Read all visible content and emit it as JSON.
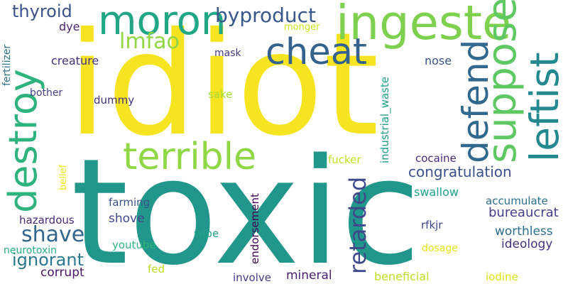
{
  "words": [
    {
      "text": "idiot",
      "color": "#f5e41f"
    },
    {
      "text": "toxic",
      "color": "#21968b"
    },
    {
      "text": "ingeste",
      "color": "#7ed14f"
    },
    {
      "text": "moron",
      "color": "#22a784"
    },
    {
      "text": "destroy",
      "color": "#2eb37c"
    },
    {
      "text": "terrible",
      "color": "#8fd744"
    },
    {
      "text": "cheat",
      "color": "#33628d"
    },
    {
      "text": "suppose",
      "color": "#5ec962"
    },
    {
      "text": "defend",
      "color": "#31688e"
    },
    {
      "text": "leftist",
      "color": "#23898e"
    },
    {
      "text": "byproduct",
      "color": "#38588c"
    },
    {
      "text": "thyroid",
      "color": "#3a538b"
    },
    {
      "text": "lmfao",
      "color": "#90d743"
    },
    {
      "text": "retarded",
      "color": "#3e4989"
    },
    {
      "text": "shave",
      "color": "#31668e"
    },
    {
      "text": "congratulation",
      "color": "#3b518b"
    },
    {
      "text": "ignorant",
      "color": "#2a788e"
    },
    {
      "text": "creature",
      "color": "#46317e"
    },
    {
      "text": "dye",
      "color": "#482576"
    },
    {
      "text": "nose",
      "color": "#3b528b"
    },
    {
      "text": "mask",
      "color": "#453882"
    },
    {
      "text": "monger",
      "color": "#cae11f"
    },
    {
      "text": "sake",
      "color": "#a5db36"
    },
    {
      "text": "dummy",
      "color": "#46327e"
    },
    {
      "text": "bother",
      "color": "#414487"
    },
    {
      "text": "fertilizer",
      "color": "#2c738e"
    },
    {
      "text": "belief",
      "color": "#f1e51d"
    },
    {
      "text": "fucker",
      "color": "#c2df23"
    },
    {
      "text": "industrial_waste",
      "color": "#1f9e89"
    },
    {
      "text": "cocaine",
      "color": "#472c7a"
    },
    {
      "text": "swallow",
      "color": "#20a386"
    },
    {
      "text": "farming",
      "color": "#3b528b"
    },
    {
      "text": "shove",
      "color": "#3e4a89"
    },
    {
      "text": "endorsement",
      "color": "#440154"
    },
    {
      "text": "accumulate",
      "color": "#2c728e"
    },
    {
      "text": "bureaucrat",
      "color": "#424086"
    },
    {
      "text": "hazardous",
      "color": "#482979"
    },
    {
      "text": "rfkjr",
      "color": "#3f4788"
    },
    {
      "text": "worthless",
      "color": "#2e6e8e"
    },
    {
      "text": "wipe",
      "color": "#1fa187"
    },
    {
      "text": "ideology",
      "color": "#46327e"
    },
    {
      "text": "neurotoxin",
      "color": "#26ad81"
    },
    {
      "text": "youtube",
      "color": "#31b57b"
    },
    {
      "text": "dosage",
      "color": "#e2e418"
    },
    {
      "text": "corrupt",
      "color": "#481467"
    },
    {
      "text": "fed",
      "color": "#b8de29"
    },
    {
      "text": "mineral",
      "color": "#482173"
    },
    {
      "text": "involve",
      "color": "#443a83"
    },
    {
      "text": "beneficial",
      "color": "#bddf26"
    },
    {
      "text": "iodine",
      "color": "#dde318"
    }
  ]
}
